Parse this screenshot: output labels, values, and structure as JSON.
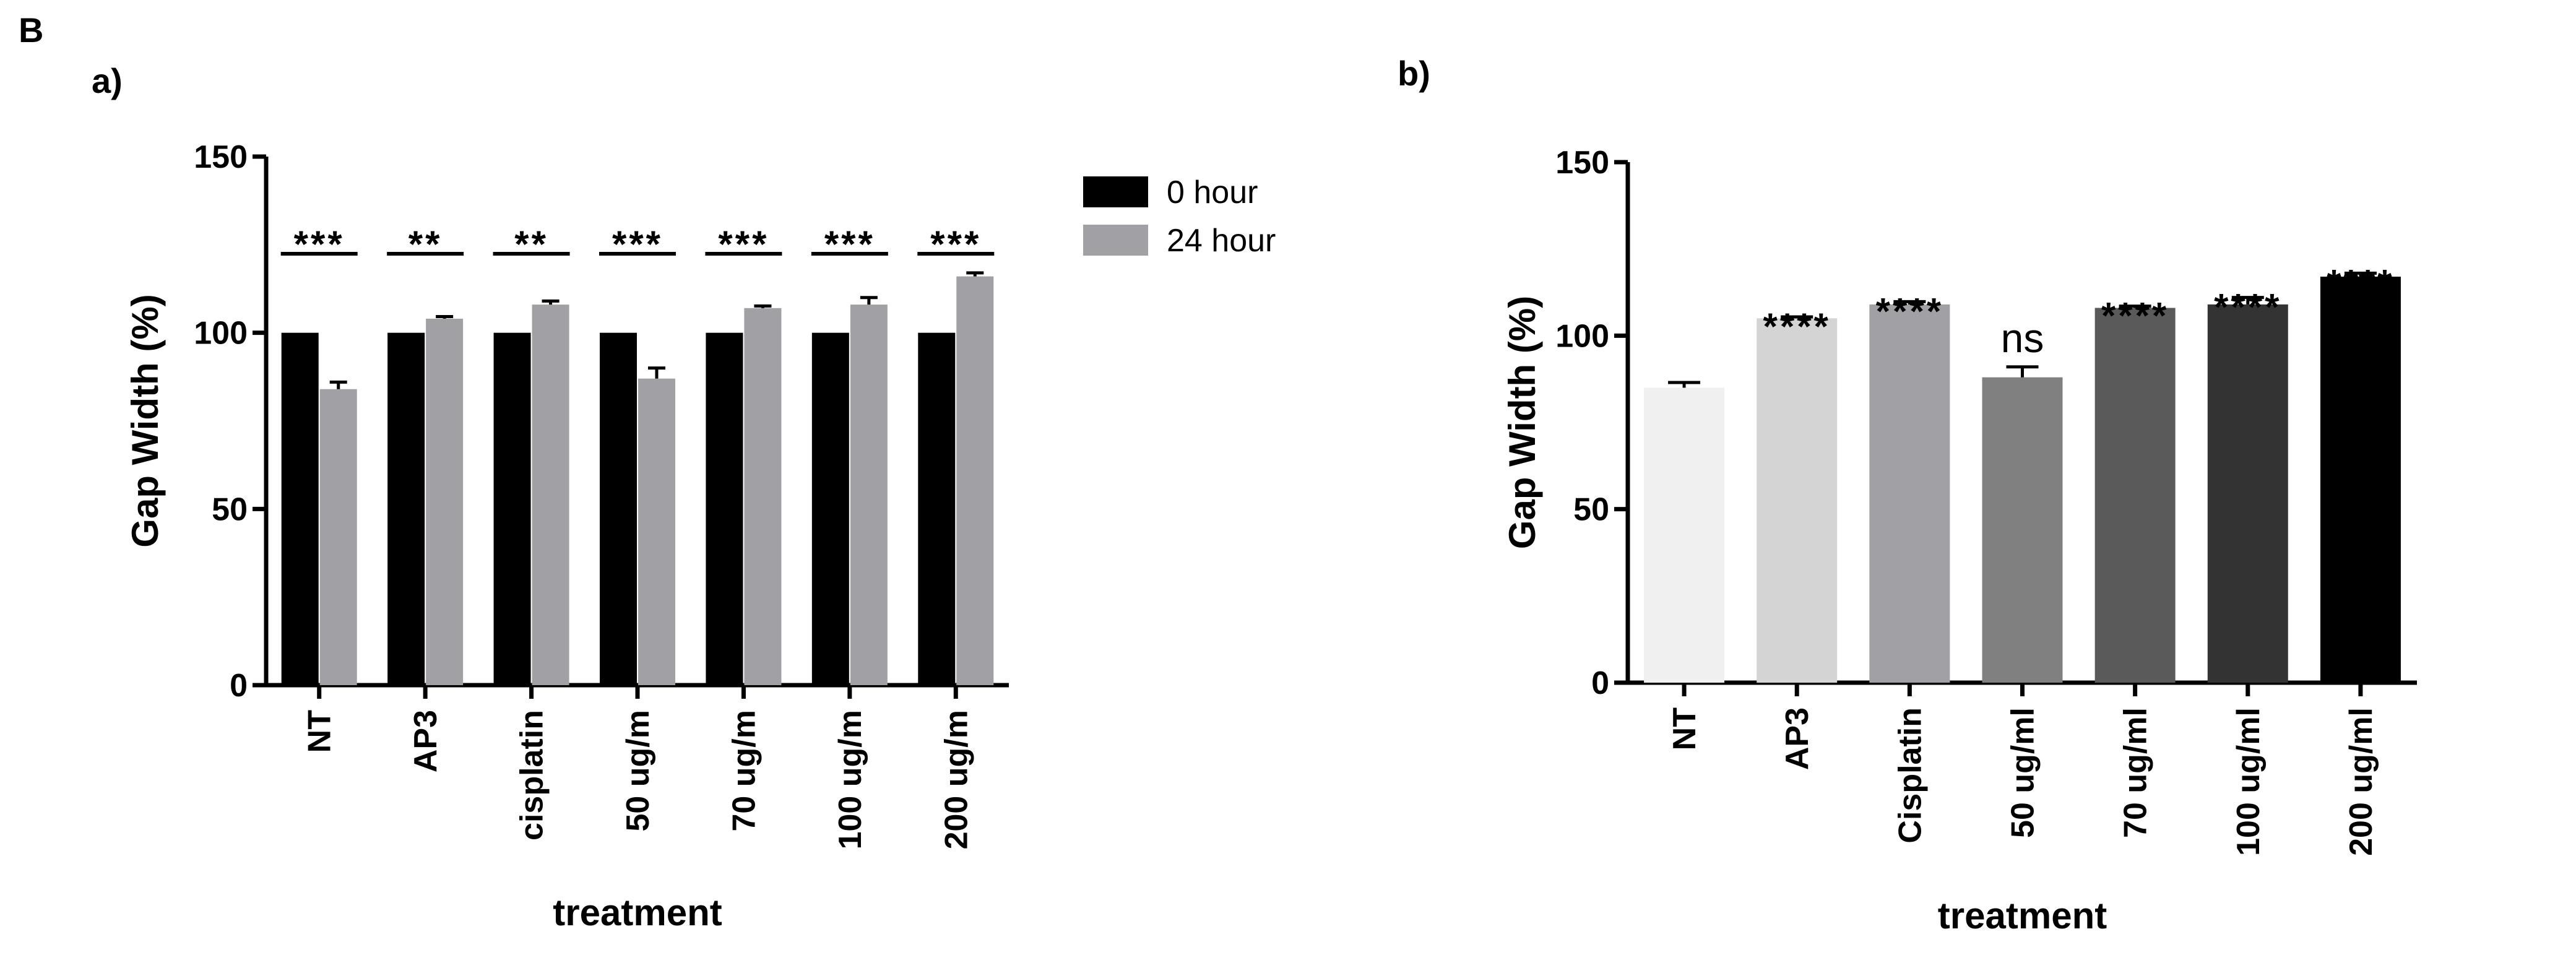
{
  "figure_label": "B",
  "chart_data": [
    {
      "panel_label": "a)",
      "type": "bar",
      "title": "",
      "xlabel": "treatment",
      "ylabel": "Gap Width (%)",
      "ylim": [
        0,
        150
      ],
      "yticks": [
        0,
        50,
        100,
        150
      ],
      "grid": false,
      "legend_position": "top-right",
      "categories": [
        "NT",
        "AP3",
        "cisplatin",
        "50 ug/m",
        "70 ug/m",
        "100 ug/m",
        "200 ug/m"
      ],
      "series": [
        {
          "name": "0 hour",
          "color": "#000000",
          "values": [
            100,
            100,
            100,
            100,
            100,
            100,
            100
          ],
          "errors": [
            0,
            0,
            0,
            0,
            0,
            0,
            0
          ]
        },
        {
          "name": "24 hour",
          "color": "#a0a0a5",
          "values": [
            84,
            104,
            108,
            87,
            107,
            108,
            116
          ],
          "errors": [
            2,
            0.6,
            1,
            3,
            0.6,
            2,
            1
          ]
        }
      ],
      "annotations": [
        "***",
        "**",
        "**",
        "***",
        "***",
        "***",
        "***"
      ]
    },
    {
      "panel_label": "b)",
      "type": "bar",
      "title": "",
      "xlabel": "treatment",
      "ylabel": "Gap Width (%)",
      "ylim": [
        0,
        150
      ],
      "yticks": [
        0,
        50,
        100,
        150
      ],
      "grid": false,
      "categories": [
        "NT",
        "AP3",
        "Cisplatin",
        "50 ug/ml",
        "70 ug/ml",
        "100 ug/ml",
        "200 ug/ml"
      ],
      "values": [
        85,
        105,
        109,
        88,
        108,
        109,
        117
      ],
      "errors": [
        1.5,
        0.4,
        0.8,
        3,
        0.5,
        2,
        1
      ],
      "colors": [
        "#f0f0f0",
        "#d4d4d4",
        "#a0a0a5",
        "#808080",
        "#5a5a5a",
        "#333333",
        "#000000"
      ],
      "annotations": [
        "",
        "****",
        "****",
        "ns",
        "****",
        "****",
        "****"
      ]
    }
  ]
}
